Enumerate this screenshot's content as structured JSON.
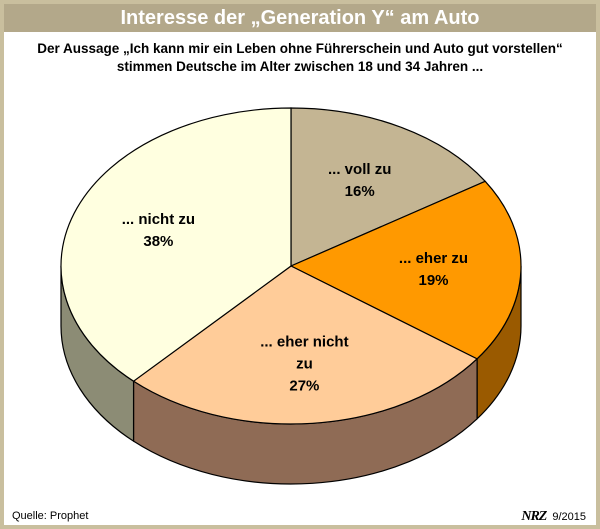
{
  "header": {
    "title": "Interesse der „Generation Y“ am Auto",
    "subtitle": "Der Aussage „Ich kann mir ein Leben ohne Führerschein und Auto gut vorstellen“ stimmen Deutsche im Alter zwischen 18 und 34 Jahren ..."
  },
  "footer": {
    "source": "Quelle: Prophet",
    "logo": "NRZ",
    "date": "9/2015"
  },
  "colors": {
    "title_bar": "#b3a88a",
    "frame": "#c9bf9e"
  },
  "chart_data": {
    "type": "pie",
    "style": "3d",
    "title": "Interesse der „Generation Y“ am Auto",
    "subtitle": "Der Aussage „Ich kann mir ein Leben ohne Führerschein und Auto gut vorstellen“ stimmen Deutsche im Alter zwischen 18 und 34 Jahren ...",
    "unit": "%",
    "slices": [
      {
        "label_lines": [
          "... voll zu"
        ],
        "value": 16,
        "value_label": "16%",
        "color": "#c4b593",
        "side_color": "#8a7d5e"
      },
      {
        "label_lines": [
          "... eher zu"
        ],
        "value": 19,
        "value_label": "19%",
        "color": "#ff9900",
        "side_color": "#9a5a00"
      },
      {
        "label_lines": [
          "... eher nicht",
          "zu"
        ],
        "value": 27,
        "value_label": "27%",
        "color": "#ffcc99",
        "side_color": "#8f6b55"
      },
      {
        "label_lines": [
          "... nicht zu"
        ],
        "value": 38,
        "value_label": "38%",
        "color": "#ffffe0",
        "side_color": "#8c8c75"
      }
    ]
  }
}
